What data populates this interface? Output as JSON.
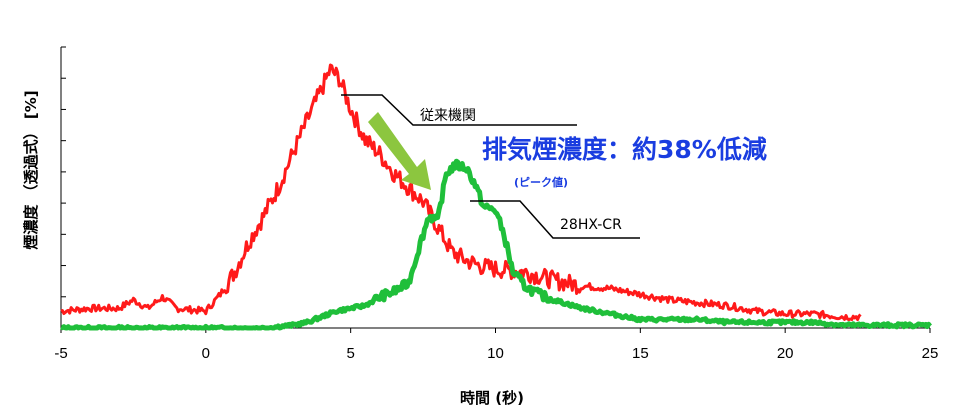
{
  "colors": {
    "series_old": "#ff1a1a",
    "series_new": "#1fbf3a",
    "arrow": "#8cc63f",
    "headline": "#1a3de0",
    "axis": "#000000"
  },
  "annotation": {
    "headline": "排気煙濃度：約38%低減",
    "subnote": "(ピーク値)"
  },
  "chart_data": {
    "type": "line",
    "xlabel": "時間 (秒)",
    "ylabel": "煙濃度 （透過式） [%]",
    "xlim": [
      -5,
      25
    ],
    "ylim": [
      0,
      100
    ],
    "xticks": [
      "-5",
      "0",
      "5",
      "10",
      "15",
      "20",
      "25"
    ],
    "ytick_count": 9,
    "grid": false,
    "series": [
      {
        "name": "従来機関",
        "color": "#ff1a1a",
        "x": [
          -5,
          -4,
          -3,
          -2.5,
          -2,
          -1.5,
          -1,
          0,
          0.5,
          1,
          1.5,
          2,
          2.5,
          3,
          3.5,
          4,
          4.3,
          4.6,
          5,
          5.5,
          6,
          6.5,
          7,
          7.5,
          8,
          8.5,
          9,
          9.5,
          10,
          11,
          12,
          13,
          14,
          15,
          16,
          17,
          18,
          19,
          20,
          21,
          22,
          22.6
        ],
        "y": [
          6,
          7,
          7,
          10,
          7,
          11,
          7,
          6,
          12,
          20,
          31,
          40,
          50,
          62,
          74,
          85,
          92,
          89,
          78,
          67,
          62,
          55,
          50,
          45,
          36,
          27,
          24,
          22,
          21,
          20,
          17,
          15,
          14,
          12,
          10,
          9,
          8,
          6,
          5,
          5,
          4,
          4
        ]
      },
      {
        "name": "28HX-CR",
        "color": "#1fbf3a",
        "x": [
          -5,
          -1,
          0,
          1,
          2,
          3,
          3.5,
          4,
          4.5,
          5,
          5.5,
          6,
          6.5,
          7,
          7.4,
          7.7,
          8,
          8.3,
          8.6,
          9,
          9.3,
          9.6,
          10,
          10.3,
          10.6,
          11,
          11.5,
          12,
          13,
          14,
          15,
          16,
          17,
          18,
          19,
          20,
          21,
          22,
          23,
          24,
          25
        ],
        "y": [
          0,
          0,
          0,
          0,
          0,
          1,
          2,
          4,
          6,
          7,
          8,
          11,
          13,
          16,
          30,
          40,
          38,
          55,
          58,
          57,
          51,
          43,
          42,
          33,
          20,
          15,
          12,
          10,
          7,
          5,
          3,
          3,
          3,
          2,
          2,
          2,
          2,
          1,
          1,
          1,
          1
        ]
      }
    ]
  }
}
